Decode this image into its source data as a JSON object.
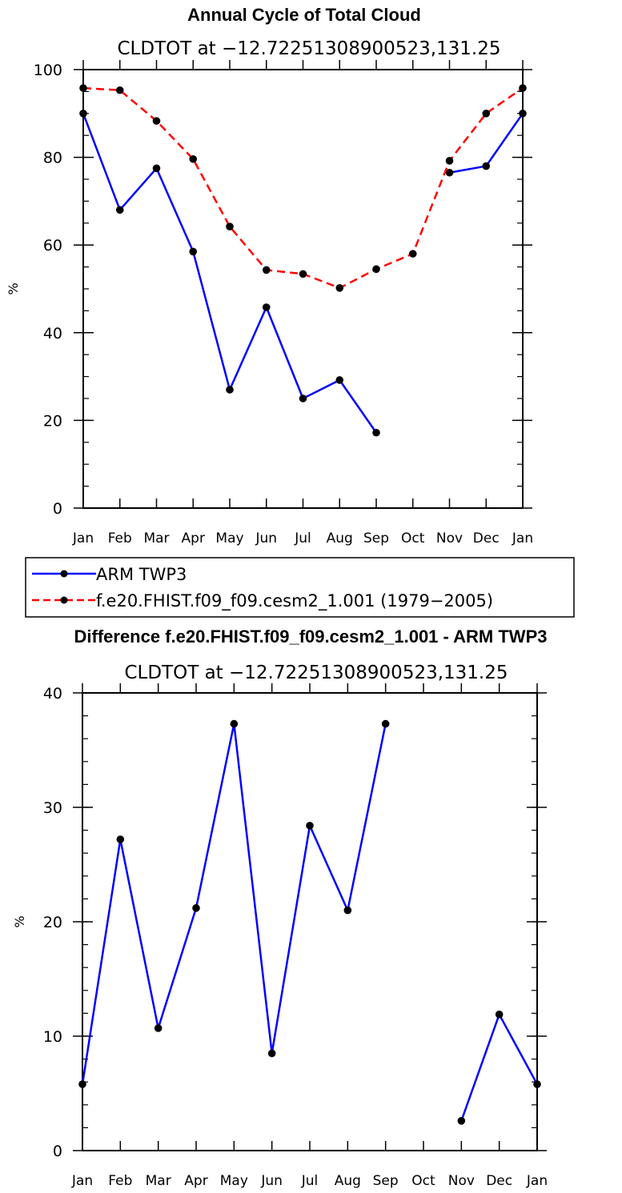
{
  "chart_data": [
    {
      "type": "line",
      "title": "Annual Cycle of Total Cloud",
      "subtitle": "CLDTOT at −12.72251308900523,131.25",
      "ylabel": "%",
      "ylim": [
        0,
        100
      ],
      "y_major_ticks": [
        0,
        20,
        40,
        60,
        80,
        100
      ],
      "y_minor_step": 5,
      "categories": [
        "Jan",
        "Feb",
        "Mar",
        "Apr",
        "May",
        "Jun",
        "Jul",
        "Aug",
        "Sep",
        "Oct",
        "Nov",
        "Dec",
        "Jan"
      ],
      "series": [
        {
          "name": "ARM TWP3",
          "color": "#0000ff",
          "dash": "solid",
          "values": [
            90,
            68,
            77.5,
            58.5,
            27,
            45.8,
            25,
            29.2,
            17.2,
            null,
            76.5,
            78,
            90
          ]
        },
        {
          "name": "f.e20.FHIST.f09_f09.cesm2_1.001 (1979−2005)",
          "color": "#ff0000",
          "dash": "dashed",
          "values": [
            95.8,
            95.3,
            88.3,
            79.6,
            64.2,
            54.3,
            53.4,
            50.2,
            54.5,
            58,
            79.2,
            90,
            95.8
          ]
        }
      ],
      "legend": {
        "placement": "below",
        "entries": [
          "ARM TWP3",
          "f.e20.FHIST.f09_f09.cesm2_1.001 (1979−2005)"
        ]
      }
    },
    {
      "type": "line",
      "title": "Difference f.e20.FHIST.f09_f09.cesm2_1.001 - ARM TWP3",
      "subtitle": "CLDTOT at −12.72251308900523,131.25",
      "ylabel": "%",
      "ylim": [
        0,
        40
      ],
      "y_major_ticks": [
        0,
        10,
        20,
        30,
        40
      ],
      "y_minor_step": 2,
      "categories": [
        "Jan",
        "Feb",
        "Mar",
        "Apr",
        "May",
        "Jun",
        "Jul",
        "Aug",
        "Sep",
        "Oct",
        "Nov",
        "Dec",
        "Jan"
      ],
      "series": [
        {
          "name": "Difference",
          "color": "#0000ff",
          "dash": "solid",
          "values": [
            5.8,
            27.2,
            10.7,
            21.2,
            37.3,
            8.5,
            28.4,
            21,
            37.3,
            null,
            2.6,
            11.9,
            5.8
          ]
        }
      ]
    }
  ]
}
